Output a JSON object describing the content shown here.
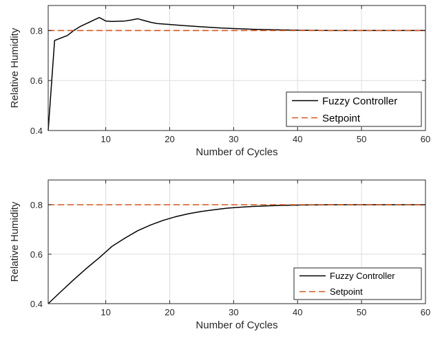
{
  "colors": {
    "fuzzy": "#000000",
    "setpoint": "#D95319",
    "grid": "#dcdcdc",
    "axis": "#262626"
  },
  "chart_data": [
    {
      "type": "line",
      "xlabel": "Number of Cycles",
      "ylabel": "Relative Humidity",
      "xlim": [
        1,
        60
      ],
      "ylim": [
        0.4,
        0.9
      ],
      "xticks": [
        10,
        20,
        30,
        40,
        50,
        60
      ],
      "yticks": [
        0.4,
        0.6,
        0.8
      ],
      "grid": true,
      "legend_position": "bottom-right",
      "series": [
        {
          "name": "Fuzzy Controller",
          "style": "solid",
          "x": [
            1,
            2,
            3,
            4,
            5,
            6,
            7,
            8,
            9,
            10,
            11,
            12,
            13,
            14,
            15,
            16,
            17,
            18,
            20,
            22,
            25,
            28,
            30,
            33,
            36,
            38,
            40,
            45,
            50,
            55,
            60
          ],
          "y": [
            0.4,
            0.76,
            0.77,
            0.78,
            0.8,
            0.816,
            0.828,
            0.84,
            0.852,
            0.838,
            0.836,
            0.837,
            0.838,
            0.842,
            0.847,
            0.84,
            0.833,
            0.828,
            0.824,
            0.82,
            0.815,
            0.81,
            0.808,
            0.805,
            0.803,
            0.802,
            0.801,
            0.8,
            0.8,
            0.8,
            0.8
          ]
        },
        {
          "name": "Setpoint",
          "style": "dashed",
          "x": [
            1,
            60
          ],
          "y": [
            0.8,
            0.8
          ]
        }
      ]
    },
    {
      "type": "line",
      "xlabel": "Number of Cycles",
      "ylabel": "Relative Humidity",
      "xlim": [
        1,
        60
      ],
      "ylim": [
        0.4,
        0.9
      ],
      "xticks": [
        10,
        20,
        30,
        40,
        50,
        60
      ],
      "yticks": [
        0.4,
        0.6,
        0.8
      ],
      "grid": true,
      "legend_position": "bottom-right",
      "series": [
        {
          "name": "Fuzzy Controller",
          "style": "solid",
          "x": [
            1,
            3,
            5,
            7,
            9,
            11,
            13,
            15,
            17,
            19,
            21,
            23,
            25,
            27,
            29,
            31,
            33,
            35,
            37,
            39,
            41,
            45,
            50,
            55,
            60
          ],
          "y": [
            0.4,
            0.449,
            0.497,
            0.543,
            0.586,
            0.632,
            0.665,
            0.695,
            0.718,
            0.737,
            0.752,
            0.764,
            0.773,
            0.78,
            0.786,
            0.79,
            0.793,
            0.795,
            0.797,
            0.798,
            0.799,
            0.8,
            0.8,
            0.8,
            0.8
          ]
        },
        {
          "name": "Setpoint",
          "style": "dashed",
          "x": [
            1,
            60
          ],
          "y": [
            0.8,
            0.8
          ]
        }
      ]
    }
  ]
}
